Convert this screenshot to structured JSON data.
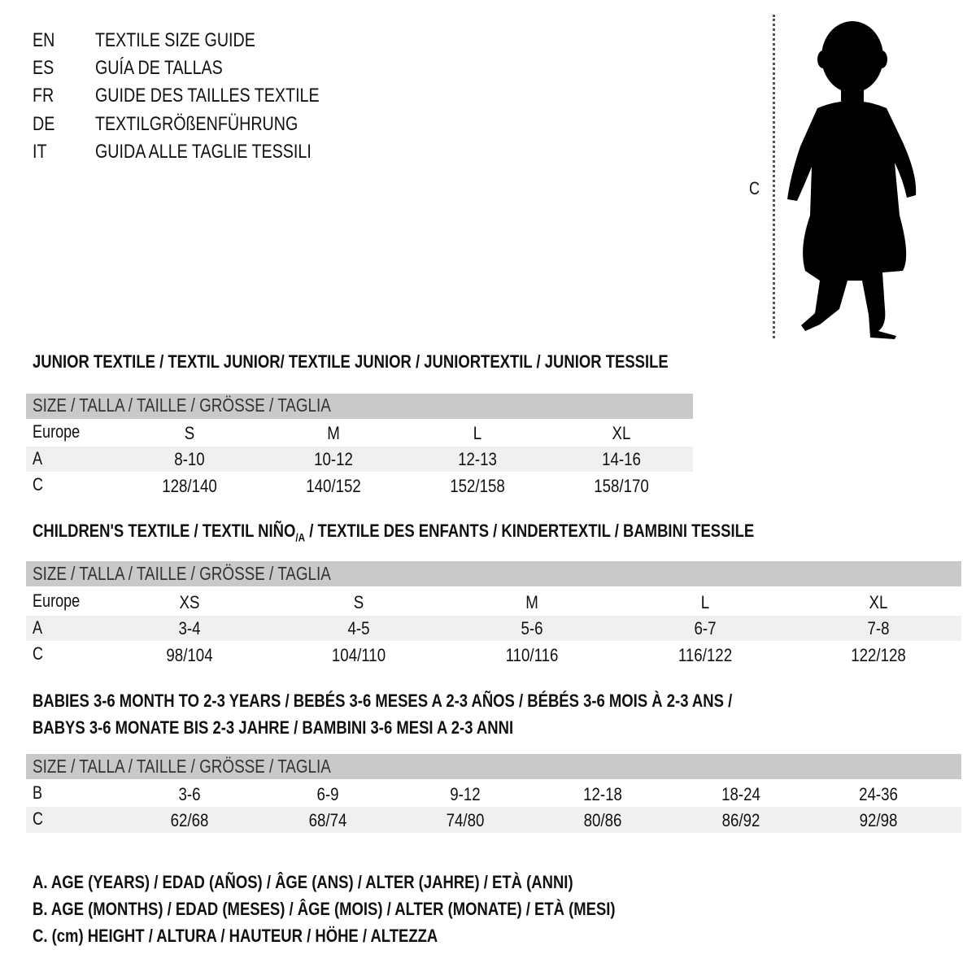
{
  "languages": [
    {
      "code": "EN",
      "title": "TEXTILE SIZE GUIDE"
    },
    {
      "code": "ES",
      "title": "GUÍA DE TALLAS"
    },
    {
      "code": "FR",
      "title": "GUIDE DES TAILLES TEXTILE"
    },
    {
      "code": "DE",
      "title": "TEXTILGRÖßENFÜHRUNG"
    },
    {
      "code": "IT",
      "title": "GUIDA ALLE TAGLIE TESSILI"
    }
  ],
  "figure": {
    "measure_label": "C",
    "icon": "baby-silhouette"
  },
  "junior": {
    "title": "JUNIOR TEXTILE / TEXTIL JUNIOR/ TEXTILE JUNIOR / JUNIORTEXTIL / JUNIOR TESSILE",
    "header": "SIZE / TALLA / TAILLE / GRÖSSE / TAGLIA",
    "rows": [
      {
        "label": "Europe",
        "values": [
          "S",
          "M",
          "L",
          "XL"
        ]
      },
      {
        "label": "A",
        "values": [
          "8-10",
          "10-12",
          "12-13",
          "14-16"
        ]
      },
      {
        "label": "C",
        "values": [
          "128/140",
          "140/152",
          "152/158",
          "158/170"
        ]
      }
    ]
  },
  "children": {
    "title_a": "CHILDREN'S TEXTILE / TEXTIL NIÑO",
    "title_sub": "/A",
    "title_b": " / TEXTILE DES ENFANTS / KINDERTEXTIL / BAMBINI TESSILE",
    "header": "SIZE / TALLA / TAILLE / GRÖSSE / TAGLIA",
    "rows": [
      {
        "label": "Europe",
        "values": [
          "XS",
          "S",
          "M",
          "L",
          "XL"
        ]
      },
      {
        "label": "A",
        "values": [
          "3-4",
          "4-5",
          "5-6",
          "6-7",
          "7-8"
        ]
      },
      {
        "label": "C",
        "values": [
          "98/104",
          "104/110",
          "110/116",
          "116/122",
          "122/128"
        ]
      }
    ]
  },
  "babies": {
    "title_line1": "BABIES 3-6 MONTH TO 2-3 YEARS / BEBÉS 3-6 MESES A 2-3 AÑOS / BÉBÉS 3-6 MOIS À 2-3 ANS /",
    "title_line2": "BABYS 3-6 MONATE BIS 2-3 JAHRE / BAMBINI 3-6 MESI A 2-3 ANNI",
    "header": "SIZE / TALLA / TAILLE / GRÖSSE / TAGLIA",
    "rows": [
      {
        "label": "B",
        "values": [
          "3-6",
          "6-9",
          "9-12",
          "12-18",
          "18-24",
          "24-36"
        ]
      },
      {
        "label": "C",
        "values": [
          "62/68",
          "68/74",
          "74/80",
          "80/86",
          "86/92",
          "92/98"
        ]
      }
    ]
  },
  "legend": [
    "A. AGE (YEARS) / EDAD (AÑOS) / ÂGE (ANS) / ALTER (JAHRE) / ETÀ (ANNI)",
    "B. AGE (MONTHS) / EDAD (MESES) / ÂGE (MOIS) / ALTER (MONATE) / ETÀ (MESI)",
    "C. (cm) HEIGHT / ALTURA / HAUTEUR / HÖHE / ALTEZZA"
  ],
  "colors": {
    "header_band": "#c9c9c9",
    "alt_row": "#f0f0f0",
    "text": "#111111"
  }
}
